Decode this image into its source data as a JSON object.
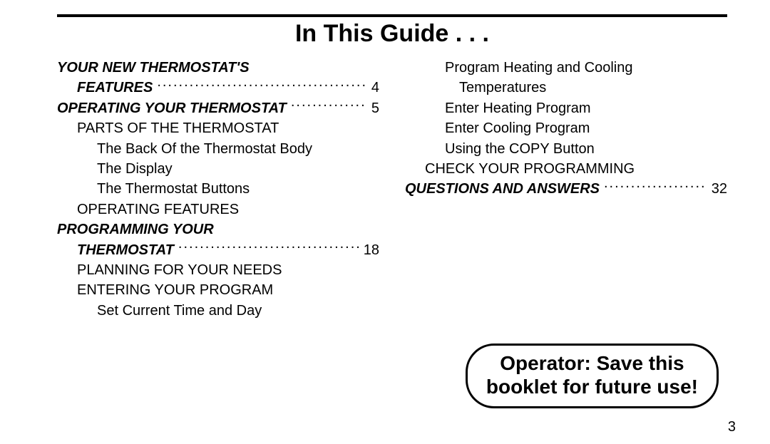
{
  "title": "In This Guide . . .",
  "callout_line1": "Operator:  Save this",
  "callout_line2": "booklet for future use!",
  "page_number": "3",
  "colors": {
    "text": "#000000",
    "background": "#ffffff",
    "rule": "#000000"
  },
  "typography": {
    "title_pt": 34,
    "body_pt": 20,
    "callout_pt": 28,
    "line_height": 1.42
  },
  "left_col": [
    {
      "label": "YOUR NEW THERMOSTAT'S",
      "bold": true,
      "italic": true,
      "indent": 0
    },
    {
      "label": "FEATURES",
      "bold": true,
      "italic": true,
      "indent": 1,
      "page": "4"
    },
    {
      "label": "OPERATING YOUR THERMOSTAT",
      "bold": true,
      "italic": true,
      "indent": 0,
      "page": "5"
    },
    {
      "label": "PARTS OF THE THERMOSTAT",
      "indent": 1
    },
    {
      "label": "The Back Of the Thermostat Body",
      "indent": 2
    },
    {
      "label": "The Display",
      "indent": 2
    },
    {
      "label": "The Thermostat Buttons",
      "indent": 2
    },
    {
      "label": "OPERATING FEATURES",
      "indent": 1
    },
    {
      "label": "PROGRAMMING YOUR",
      "bold": true,
      "italic": true,
      "indent": 0
    },
    {
      "label": "THERMOSTAT",
      "bold": true,
      "italic": true,
      "indent": 1,
      "page": "18"
    },
    {
      "label": "PLANNING FOR YOUR NEEDS",
      "indent": 1
    },
    {
      "label": "ENTERING YOUR PROGRAM",
      "indent": 1
    },
    {
      "label": "Set Current Time and Day",
      "indent": 2
    }
  ],
  "right_col": [
    {
      "label": "Program Heating and Cooling",
      "indent": 2
    },
    {
      "label": "Temperatures",
      "indent": 2,
      "extra_indent": true
    },
    {
      "label": "Enter Heating Program",
      "indent": 2
    },
    {
      "label": "Enter Cooling Program",
      "indent": 2
    },
    {
      "label": "Using the COPY Button",
      "indent": 2
    },
    {
      "label": "CHECK YOUR PROGRAMMING",
      "indent": 1
    },
    {
      "label": "QUESTIONS AND ANSWERS",
      "bold": true,
      "italic": true,
      "indent": 0,
      "page": "32"
    }
  ]
}
